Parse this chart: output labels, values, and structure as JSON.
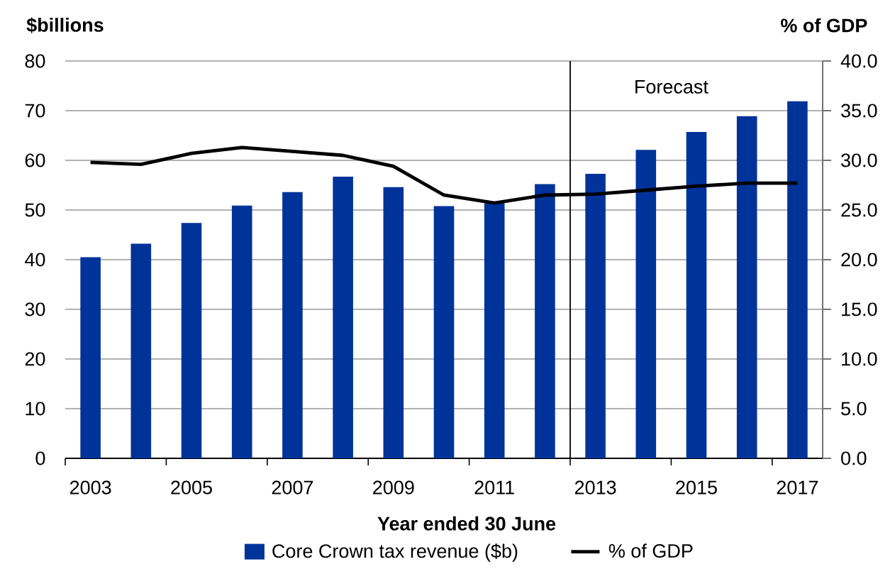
{
  "chart_data": {
    "type": "bar",
    "xlabel": "Year ended 30 June",
    "ylabel": "$billions",
    "y2label": "% of GDP",
    "x": [
      2003,
      2004,
      2005,
      2006,
      2007,
      2008,
      2009,
      2010,
      2011,
      2012,
      2013,
      2014,
      2015,
      2016,
      2017
    ],
    "series": [
      {
        "name": "Core Crown tax revenue ($b)",
        "color": "#003399",
        "values": [
          40.5,
          43.2,
          47.4,
          50.9,
          53.6,
          56.7,
          54.6,
          50.8,
          51.4,
          55.2,
          57.3,
          62.1,
          65.7,
          68.9,
          71.9
        ]
      },
      {
        "name": "% of GDP",
        "type": "line",
        "axis": "y2",
        "color": "#000000",
        "values": [
          29.8,
          29.6,
          30.7,
          31.3,
          30.9,
          30.5,
          29.4,
          26.5,
          25.7,
          26.5,
          26.6,
          27.0,
          27.4,
          27.7,
          27.7
        ]
      }
    ],
    "xlim": [
      2002.5,
      2017.5
    ],
    "xticks": [
      2003,
      2005,
      2007,
      2009,
      2011,
      2013,
      2015,
      2017
    ],
    "ylim": [
      0,
      80
    ],
    "yticks": [
      0,
      10,
      20,
      30,
      40,
      50,
      60,
      70,
      80
    ],
    "y2lim": [
      0,
      40
    ],
    "y2ticks": [
      {
        "value": 0,
        "label": "0.0"
      },
      {
        "value": 5,
        "label": "5.0"
      },
      {
        "value": 10,
        "label": "10.0"
      },
      {
        "value": 15,
        "label": "15.0"
      },
      {
        "value": 20,
        "label": "20.0"
      },
      {
        "value": 25,
        "label": "25.0"
      },
      {
        "value": 30,
        "label": "30.0"
      },
      {
        "value": 35,
        "label": "35.0"
      },
      {
        "value": 40,
        "label": "40.0"
      }
    ],
    "ref_lines": [
      {
        "axis": "x",
        "value": 2012.5,
        "color": "#000000"
      }
    ],
    "annotations": [
      "Forecast"
    ],
    "grid": "y",
    "legend": "bottom",
    "marker": "none"
  }
}
